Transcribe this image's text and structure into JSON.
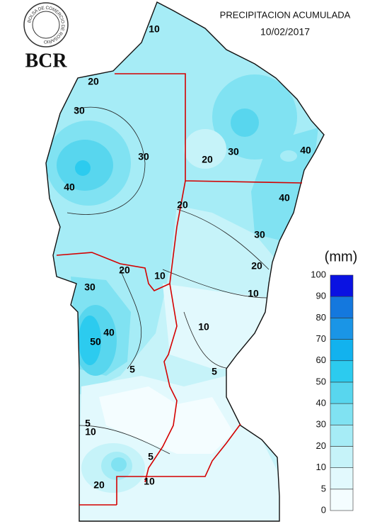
{
  "header": {
    "title": "PRECIPITACION ACUMULADA",
    "date": "10/02/2017"
  },
  "logo": {
    "initials": "BCR",
    "ring_text": "BOLSA DE COMERCIO DE ROSARIO"
  },
  "legend": {
    "unit": "(mm)",
    "ticks": [
      0,
      5,
      10,
      20,
      30,
      40,
      50,
      60,
      70,
      80,
      90,
      100
    ],
    "colors": [
      "#f4fdff",
      "#e2f9fd",
      "#c6f3f9",
      "#a6ecf6",
      "#80e2f2",
      "#58d6ee",
      "#2ccbef",
      "#12b2ee",
      "#1a95e6",
      "#1478de",
      "#0a12e2"
    ]
  },
  "contour_labels": [
    "10",
    "20",
    "30",
    "30",
    "40",
    "20",
    "30",
    "40",
    "40",
    "20",
    "30",
    "20",
    "10",
    "20",
    "10",
    "30",
    "40",
    "50",
    "10",
    "5",
    "5",
    "5",
    "10",
    "5",
    "10",
    "20"
  ]
}
